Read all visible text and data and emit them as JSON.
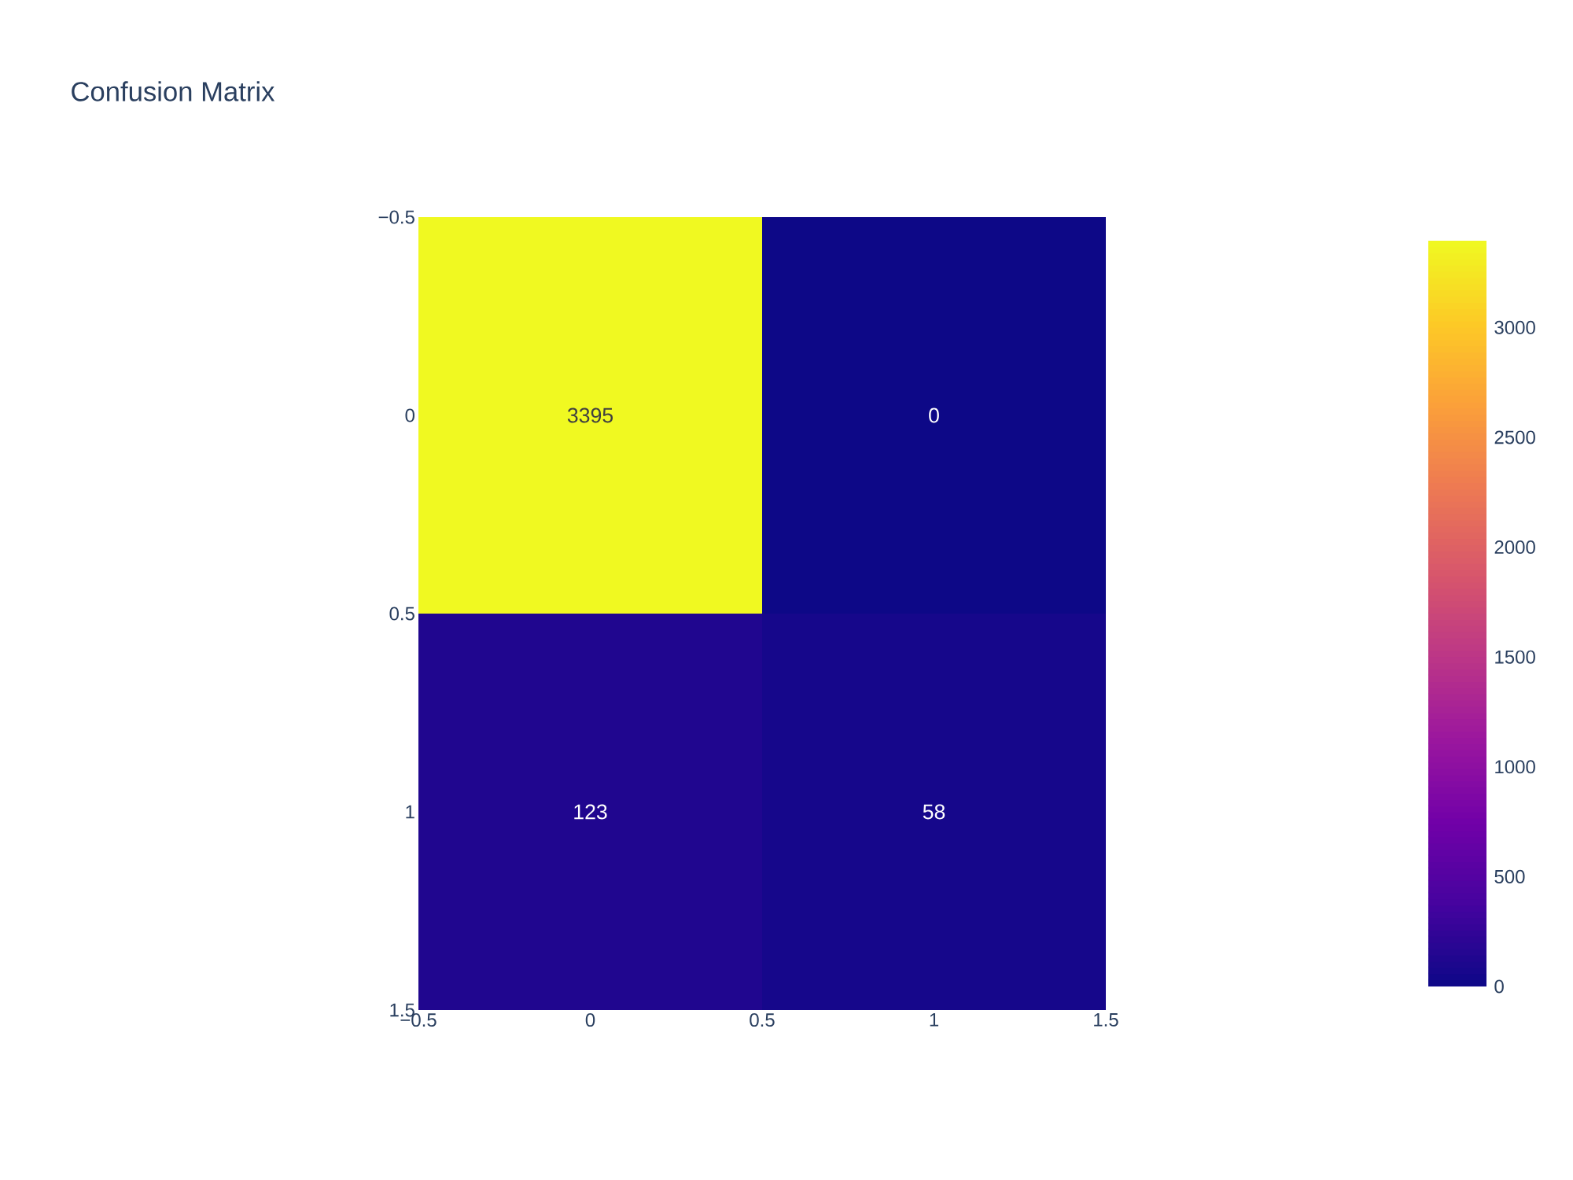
{
  "chart_data": {
    "type": "heatmap",
    "title": "Confusion Matrix",
    "x": [
      0,
      1
    ],
    "y": [
      0,
      1
    ],
    "cells": [
      [
        3395,
        0
      ],
      [
        123,
        58
      ]
    ],
    "data_labels": true,
    "xlim": [
      -0.5,
      1.5
    ],
    "ylim": [
      1.5,
      -0.5
    ],
    "xticks": [
      {
        "value": -0.5,
        "label": "−0.5"
      },
      0,
      0.5,
      1,
      1.5
    ],
    "yticks": [
      {
        "value": -0.5,
        "label": "−0.5"
      },
      0,
      0.5,
      1,
      1.5
    ],
    "clim": [
      0,
      3395
    ],
    "cticks": [
      0,
      500,
      1000,
      1500,
      2000,
      2500,
      3000
    ],
    "grid": false
  }
}
